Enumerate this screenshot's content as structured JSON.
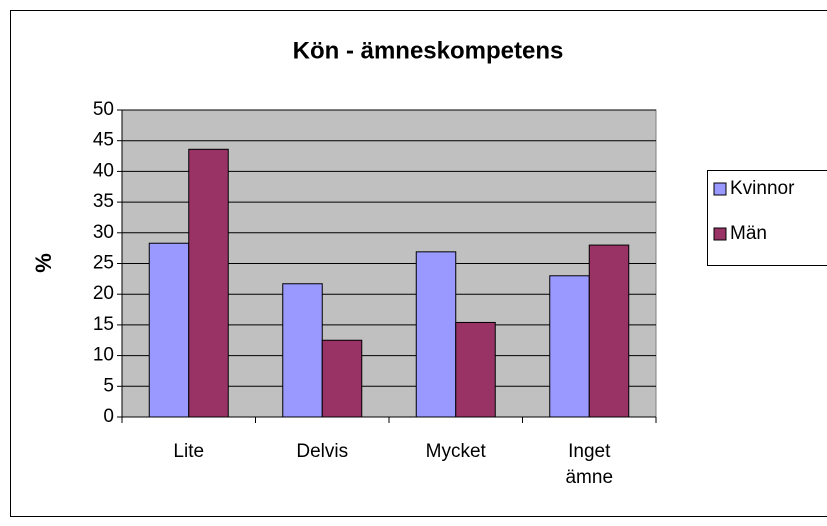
{
  "chart_data": {
    "type": "bar",
    "title": "Kön - ämneskompetens",
    "y_label": "%",
    "categories": [
      "Lite",
      "Delvis",
      "Mycket",
      "Inget ämne"
    ],
    "series": [
      {
        "name": "Kvinnor",
        "color": "#9999ff",
        "values": [
          28.3,
          21.7,
          26.9,
          23.0
        ]
      },
      {
        "name": "Män",
        "color": "#993366",
        "values": [
          43.6,
          12.5,
          15.4,
          28.0
        ]
      }
    ],
    "ylim": [
      0,
      50
    ],
    "yticks": [
      0,
      5,
      10,
      15,
      20,
      25,
      30,
      35,
      40,
      45,
      50
    ],
    "grid": true,
    "plot_background": "#c0c0c0",
    "legend": "right"
  }
}
